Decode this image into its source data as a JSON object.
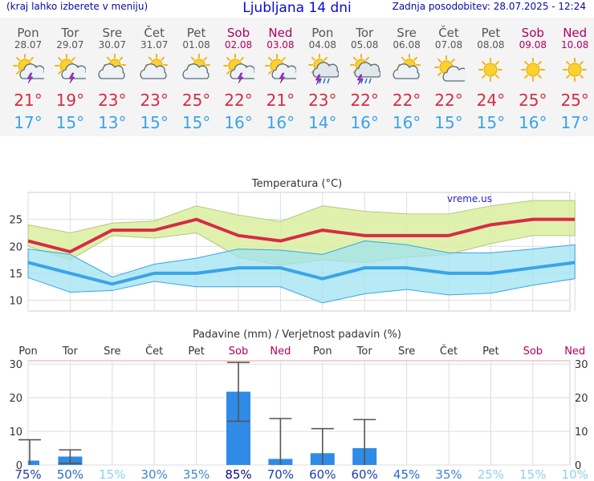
{
  "header": {
    "left_note": "(kraj lahko izberete v meniju)",
    "title": "Ljubljana 14 dni",
    "updated": "Zadnja posodobitev: 28.07.2025 - 12:24"
  },
  "colors": {
    "weekend": "#b00060",
    "tmax": "#d62c44",
    "tmin": "#3aa4e6",
    "max_band": "#dbeea0",
    "min_band": "#9fe3f0",
    "bars": "#2f8be6"
  },
  "days": [
    {
      "name": "Pon",
      "date": "28.07",
      "icon": "sun-cloud-storm-icon",
      "tmax": "21°",
      "tmin": "17°",
      "weekend": false,
      "precip_prob": "75%"
    },
    {
      "name": "Tor",
      "date": "29.07",
      "icon": "sun-cloud-storm-icon",
      "tmax": "19°",
      "tmin": "15°",
      "weekend": false,
      "precip_prob": "50%"
    },
    {
      "name": "Sre",
      "date": "30.07",
      "icon": "sun-cloud-icon",
      "tmax": "23°",
      "tmin": "13°",
      "weekend": false,
      "precip_prob": "15%"
    },
    {
      "name": "Čet",
      "date": "31.07",
      "icon": "sun-cloud-icon",
      "tmax": "23°",
      "tmin": "15°",
      "weekend": false,
      "precip_prob": "30%"
    },
    {
      "name": "Pet",
      "date": "01.08",
      "icon": "sun-cloud-icon",
      "tmax": "25°",
      "tmin": "15°",
      "weekend": false,
      "precip_prob": "35%"
    },
    {
      "name": "Sob",
      "date": "02.08",
      "icon": "sun-cloud-storm-icon",
      "tmax": "22°",
      "tmin": "16°",
      "weekend": true,
      "precip_prob": "85%"
    },
    {
      "name": "Ned",
      "date": "03.08",
      "icon": "sun-cloud-storm-icon",
      "tmax": "21°",
      "tmin": "16°",
      "weekend": true,
      "precip_prob": "70%"
    },
    {
      "name": "Pon",
      "date": "04.08",
      "icon": "sun-cloud-rain-storm-icon",
      "tmax": "23°",
      "tmin": "14°",
      "weekend": false,
      "precip_prob": "60%"
    },
    {
      "name": "Tor",
      "date": "05.08",
      "icon": "sun-cloud-rain-storm-icon",
      "tmax": "22°",
      "tmin": "16°",
      "weekend": false,
      "precip_prob": "60%"
    },
    {
      "name": "Sre",
      "date": "06.08",
      "icon": "sun-cloud-icon",
      "tmax": "22°",
      "tmin": "16°",
      "weekend": false,
      "precip_prob": "45%"
    },
    {
      "name": "Čet",
      "date": "07.08",
      "icon": "sun-small-cloud-icon",
      "tmax": "22°",
      "tmin": "15°",
      "weekend": false,
      "precip_prob": "35%"
    },
    {
      "name": "Pet",
      "date": "08.08",
      "icon": "sun-icon",
      "tmax": "24°",
      "tmin": "15°",
      "weekend": false,
      "precip_prob": "25%"
    },
    {
      "name": "Sob",
      "date": "09.08",
      "icon": "sun-icon",
      "tmax": "25°",
      "tmin": "16°",
      "weekend": true,
      "precip_prob": "15%"
    },
    {
      "name": "Ned",
      "date": "10.08",
      "icon": "sun-icon",
      "tmax": "25°",
      "tmin": "17°",
      "weekend": true,
      "precip_prob": "10%"
    }
  ],
  "chart_data": [
    {
      "type": "line",
      "title": "Temperatura (°C)",
      "watermark": "vreme.us",
      "x": [
        "Pon",
        "Tor",
        "Sre",
        "Čet",
        "Pet",
        "Sob",
        "Ned",
        "Pon",
        "Tor",
        "Sre",
        "Čet",
        "Pet",
        "Sob",
        "Ned"
      ],
      "ylim": [
        8,
        30
      ],
      "yticks": [
        10,
        15,
        20,
        25
      ],
      "grid": true,
      "series": [
        {
          "values": [
            21,
            19,
            23,
            23,
            25,
            22,
            21,
            23,
            22,
            22,
            22,
            24,
            25,
            25
          ],
          "band_upper": [
            24,
            22.5,
            24.3,
            24.7,
            27.5,
            25.8,
            24.6,
            27.5,
            26.5,
            26,
            26,
            27.5,
            28.5,
            28.5
          ],
          "band_lower": [
            20,
            17.5,
            22,
            21.5,
            22.5,
            18,
            16.5,
            17.5,
            17,
            18,
            18.5,
            20.5,
            22,
            22
          ]
        },
        {
          "values": [
            17,
            15,
            13,
            15,
            15,
            16,
            16,
            14,
            16,
            16,
            15,
            15,
            16,
            17
          ],
          "band_upper": [
            19.5,
            18.5,
            14.3,
            16.7,
            17.8,
            19.5,
            19.3,
            18.5,
            21,
            20.3,
            18.8,
            18.8,
            19.5,
            20.3
          ],
          "band_lower": [
            14.2,
            11.5,
            11.8,
            13.5,
            12.5,
            12.5,
            12.5,
            9.5,
            11.2,
            12,
            11,
            11.3,
            12.8,
            14
          ]
        }
      ]
    },
    {
      "type": "bar",
      "title": "Padavine (mm) / Verjetnost padavin (%)",
      "categories": [
        "Pon",
        "Tor",
        "Sre",
        "Čet",
        "Pet",
        "Sob",
        "Ned",
        "Pon",
        "Tor",
        "Sre",
        "Čet",
        "Pet",
        "Sob",
        "Ned"
      ],
      "values": [
        1.3,
        2.5,
        0,
        0,
        0,
        21.8,
        1.8,
        3.5,
        5,
        0,
        0,
        0,
        0,
        0
      ],
      "error_low": [
        0,
        0.5,
        0,
        0,
        0,
        13,
        0,
        0,
        0,
        0,
        0,
        0,
        0,
        0
      ],
      "error_high": [
        7.5,
        4.5,
        0,
        0,
        0,
        30.5,
        13.8,
        10.8,
        13.5,
        0,
        0,
        0,
        0,
        0
      ],
      "probability": [
        "75%",
        "50%",
        "15%",
        "30%",
        "35%",
        "85%",
        "70%",
        "60%",
        "60%",
        "45%",
        "35%",
        "25%",
        "15%",
        "10%"
      ],
      "ylim": [
        0,
        31
      ],
      "yticks": [
        0,
        10,
        20,
        30
      ],
      "grid": true
    }
  ]
}
